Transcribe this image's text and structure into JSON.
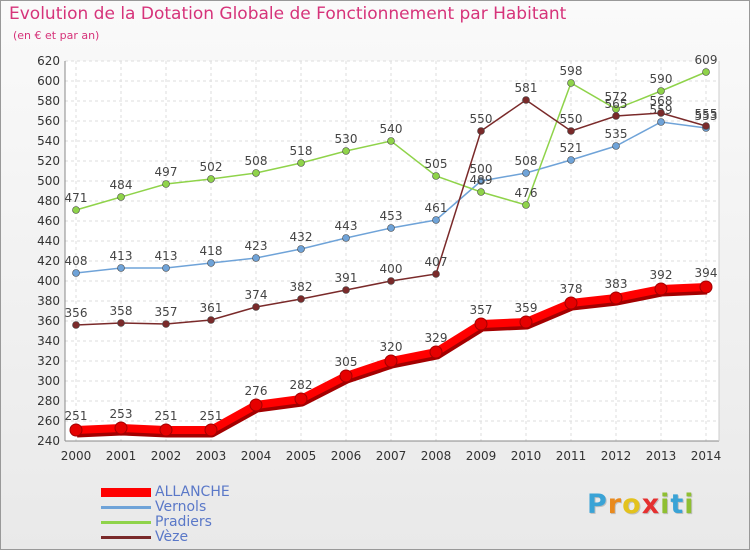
{
  "title": "Evolution de la Dotation Globale de Fonctionnement par Habitant",
  "subtitle": "(en € et par an)",
  "logo": {
    "text": "Proxiti",
    "letters": [
      {
        "char": "P",
        "color": "#3aa3d6"
      },
      {
        "char": "r",
        "color": "#e98a1e"
      },
      {
        "char": "o",
        "color": "#e3c21d"
      },
      {
        "char": "x",
        "color": "#e53030"
      },
      {
        "char": "i",
        "color": "#8fbf32"
      },
      {
        "char": "t",
        "color": "#3aa3d6"
      },
      {
        "char": "i",
        "color": "#8fbf32"
      }
    ]
  },
  "chart_data": {
    "type": "line",
    "title": "Evolution de la Dotation Globale de Fonctionnement par Habitant",
    "subtitle": "(en € et par an)",
    "xlabel": "",
    "ylabel": "",
    "x": [
      "2000",
      "2001",
      "2002",
      "2003",
      "2004",
      "2005",
      "2006",
      "2007",
      "2008",
      "2009",
      "2010",
      "2011",
      "2012",
      "2013",
      "2014"
    ],
    "yticks": [
      240,
      260,
      280,
      300,
      320,
      340,
      360,
      380,
      400,
      420,
      440,
      460,
      480,
      500,
      520,
      540,
      560,
      580,
      600,
      620
    ],
    "ylim": [
      240,
      620
    ],
    "grid": true,
    "legend_position": "bottom-left",
    "series": [
      {
        "name": "ALLANCHE",
        "color": "#ff0000",
        "thick": true,
        "values": [
          251,
          253,
          251,
          251,
          276,
          282,
          305,
          320,
          329,
          357,
          359,
          378,
          383,
          392,
          394
        ]
      },
      {
        "name": "Vernols",
        "color": "#6fa3d8",
        "thick": false,
        "values": [
          408,
          413,
          413,
          418,
          423,
          432,
          443,
          453,
          461,
          500,
          508,
          521,
          535,
          559,
          553
        ]
      },
      {
        "name": "Pradiers",
        "color": "#8fd34a",
        "thick": false,
        "values": [
          471,
          484,
          497,
          502,
          508,
          518,
          530,
          540,
          505,
          489,
          476,
          598,
          572,
          590,
          609
        ]
      },
      {
        "name": "Vèze",
        "color": "#7a2a2a",
        "thick": false,
        "values": [
          356,
          358,
          357,
          361,
          374,
          382,
          391,
          400,
          407,
          550,
          581,
          550,
          565,
          568,
          555
        ]
      }
    ]
  }
}
